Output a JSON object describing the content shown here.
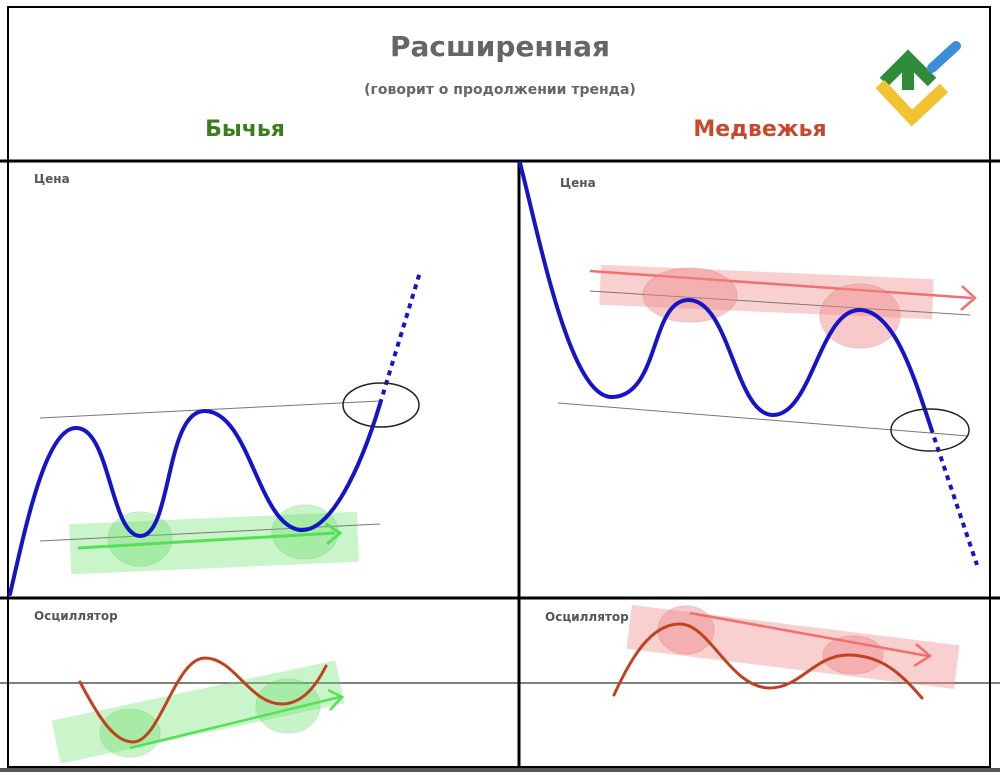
{
  "header": {
    "title": "Расширенная",
    "subtitle": "(говорит о продолжении тренда)"
  },
  "panels": {
    "bullish": {
      "heading": "Бычья",
      "price_label": "Цена",
      "oscillator_label": "Осциллятор"
    },
    "bearish": {
      "heading": "Медвежья",
      "price_label": "Цена",
      "oscillator_label": "Осциллятор"
    }
  },
  "logo": {
    "icon": "brand-logo-icon",
    "colors": [
      "#2e8b3a",
      "#f2c230",
      "#3b8fd9"
    ]
  },
  "colors": {
    "price_line": "#1515c8",
    "oscillator_line": "#c0431f",
    "bull_zone": "#66e066",
    "bear_zone": "#f08a8a",
    "bull_heading": "#3a7d1c",
    "bear_heading": "#c9472c",
    "grid": "#000000"
  }
}
